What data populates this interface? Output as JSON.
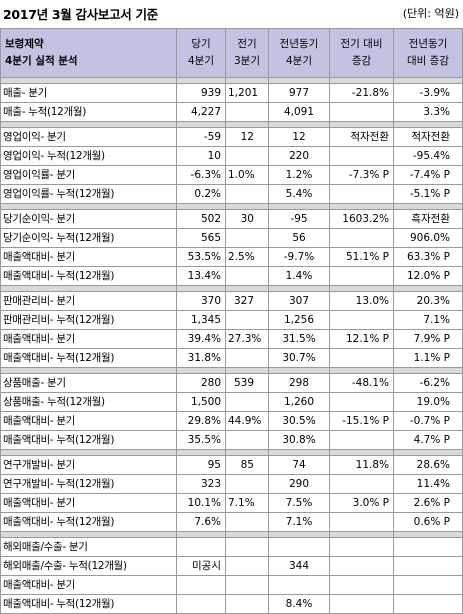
{
  "title": "2017년 3월 감사보고서 기준",
  "unit": "(단위: 억원)",
  "header": {
    "company": "보령제약",
    "subtitle": "4분기 실적 분석",
    "col1": [
      "당기",
      "4분기"
    ],
    "col2": [
      "전기",
      "3분기"
    ],
    "col3": [
      "전년동기",
      "4분기"
    ],
    "col4": [
      "전기 대비",
      "증감"
    ],
    "col5": [
      "전년동기",
      "대비 증감"
    ]
  },
  "groups": [
    {
      "rows": [
        {
          "label": "매출- 분기",
          "cur": "939",
          "prev": "1,201",
          "last": "977",
          "qoq": "-21.8%",
          "yoy": "-3.9%"
        },
        {
          "label": "매출- 누적(12개월)",
          "cur": "4,227",
          "prev": "",
          "last": "4,091",
          "qoq": "",
          "yoy": "3.3%"
        }
      ]
    },
    {
      "rows": [
        {
          "label": "영업이익- 분기",
          "cur": "-59",
          "prev": "12",
          "last": "12",
          "qoq": "적자전환",
          "yoy": "적자전환"
        },
        {
          "label": "영업이익- 누적(12개월)",
          "cur": "10",
          "prev": "",
          "last": "220",
          "qoq": "",
          "yoy": "-95.4%"
        },
        {
          "label": "영업이익률- 분기",
          "cur": "-6.3%",
          "prev": "1.0%",
          "last": "1.2%",
          "qoq": "-7.3% P",
          "yoy": "-7.4% P"
        },
        {
          "label": "영업이익률- 누적(12개월)",
          "cur": "0.2%",
          "prev": "",
          "last": "5.4%",
          "qoq": "",
          "yoy": "-5.1% P"
        }
      ]
    },
    {
      "rows": [
        {
          "label": "당기순이익- 분기",
          "cur": "502",
          "prev": "30",
          "last": "-95",
          "qoq": "1603.2%",
          "yoy": "흑자전환"
        },
        {
          "label": "당기순이익- 누적(12개월)",
          "cur": "565",
          "prev": "",
          "last": "56",
          "qoq": "",
          "yoy": "906.0%"
        },
        {
          "label": "매출액대비- 분기",
          "cur": "53.5%",
          "prev": "2.5%",
          "last": "-9.7%",
          "qoq": "51.1% P",
          "yoy": "63.3% P"
        },
        {
          "label": "매출액대비- 누적(12개월)",
          "cur": "13.4%",
          "prev": "",
          "last": "1.4%",
          "qoq": "",
          "yoy": "12.0% P"
        }
      ]
    },
    {
      "rows": [
        {
          "label": "판매관리비- 분기",
          "cur": "370",
          "prev": "327",
          "last": "307",
          "qoq": "13.0%",
          "yoy": "20.3%"
        },
        {
          "label": "판매관리비- 누적(12개월)",
          "cur": "1,345",
          "prev": "",
          "last": "1,256",
          "qoq": "",
          "yoy": "7.1%"
        },
        {
          "label": "매출액대비- 분기",
          "cur": "39.4%",
          "prev": "27.3%",
          "last": "31.5%",
          "qoq": "12.1% P",
          "yoy": "7.9% P"
        },
        {
          "label": "매출액대비- 누적(12개월)",
          "cur": "31.8%",
          "prev": "",
          "last": "30.7%",
          "qoq": "",
          "yoy": "1.1% P"
        }
      ]
    },
    {
      "rows": [
        {
          "label": "상품매출- 분기",
          "cur": "280",
          "prev": "539",
          "last": "298",
          "qoq": "-48.1%",
          "yoy": "-6.2%"
        },
        {
          "label": "상품매출- 누적(12개월)",
          "cur": "1,500",
          "prev": "",
          "last": "1,260",
          "qoq": "",
          "yoy": "19.0%"
        },
        {
          "label": "매출액대비- 분기",
          "cur": "29.8%",
          "prev": "44.9%",
          "last": "30.5%",
          "qoq": "-15.1% P",
          "yoy": "-0.7% P"
        },
        {
          "label": "매출액대비- 누적(12개월)",
          "cur": "35.5%",
          "prev": "",
          "last": "30.8%",
          "qoq": "",
          "yoy": "4.7% P"
        }
      ]
    },
    {
      "rows": [
        {
          "label": "연구개발비- 분기",
          "cur": "95",
          "prev": "85",
          "last": "74",
          "qoq": "11.8%",
          "yoy": "28.6%"
        },
        {
          "label": "연구개발비- 누적(12개월)",
          "cur": "323",
          "prev": "",
          "last": "290",
          "qoq": "",
          "yoy": "11.4%"
        },
        {
          "label": "매출액대비- 분기",
          "cur": "10.1%",
          "prev": "7.1%",
          "last": "7.5%",
          "qoq": "3.0% P",
          "yoy": "2.6% P"
        },
        {
          "label": "매출액대비- 누적(12개월)",
          "cur": "7.6%",
          "prev": "",
          "last": "7.1%",
          "qoq": "",
          "yoy": "0.6% P"
        }
      ]
    },
    {
      "rows": [
        {
          "label": "해외매출/수출- 분기",
          "cur": "",
          "prev": "",
          "last": "",
          "qoq": "",
          "yoy": ""
        },
        {
          "label": "해외매출/수출- 누적(12개월)",
          "cur": "미공시",
          "prev": "",
          "last": "344",
          "qoq": "",
          "yoy": ""
        },
        {
          "label": "매출액대비- 분기",
          "cur": "",
          "prev": "",
          "last": "",
          "qoq": "",
          "yoy": ""
        },
        {
          "label": "매출액대비- 누적(12개월)",
          "cur": "",
          "prev": "",
          "last": "8.4%",
          "qoq": "",
          "yoy": ""
        }
      ]
    }
  ]
}
